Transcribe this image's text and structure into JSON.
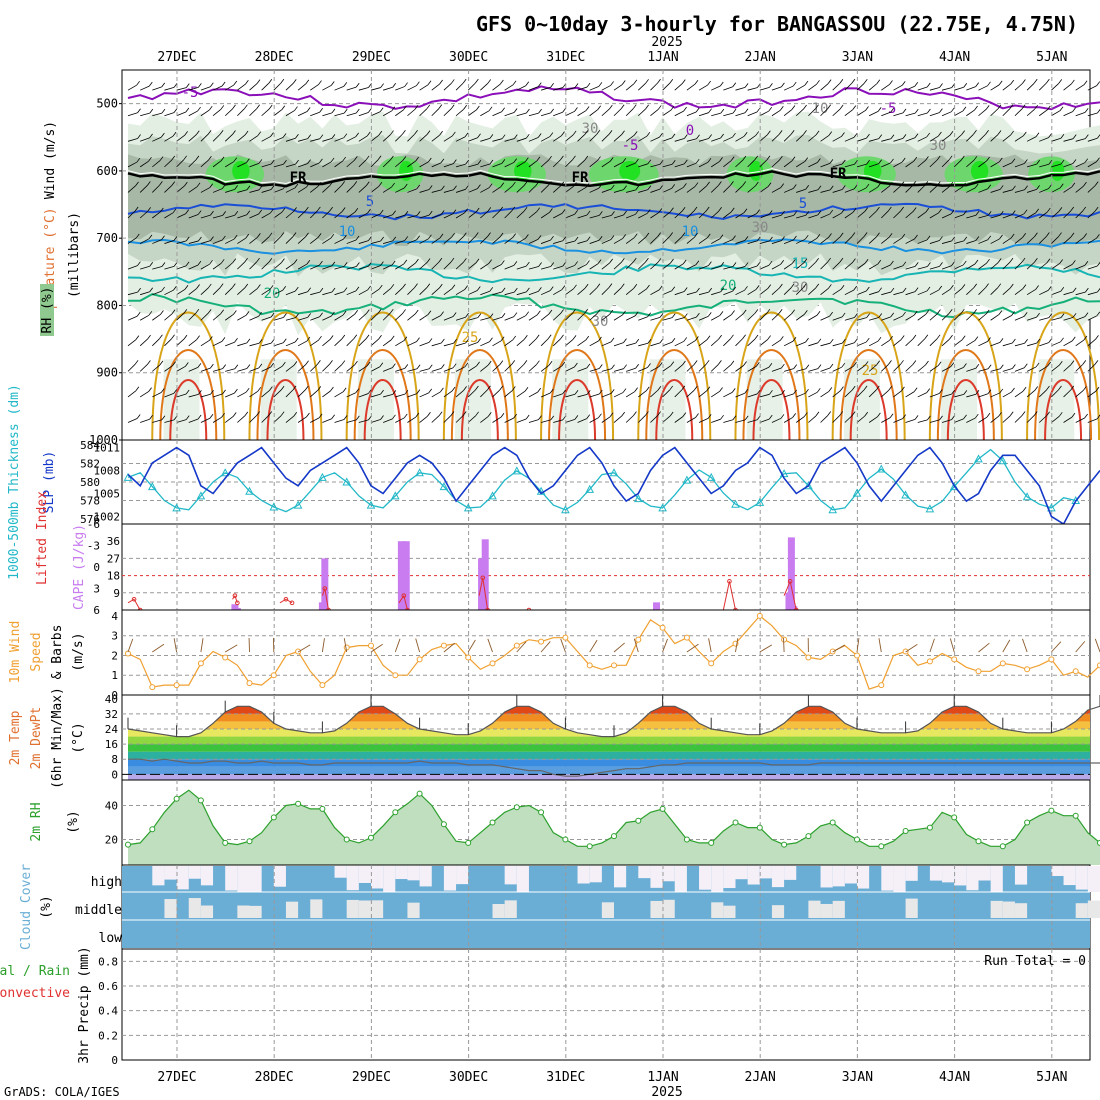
{
  "title": "GFS 0~10day 3-hourly for BANGASSOU (22.75E, 4.75N)",
  "year_label": "2025",
  "date_labels": [
    "27DEC",
    "28DEC",
    "29DEC",
    "30DEC",
    "31DEC",
    "1JAN",
    "2JAN",
    "3JAN",
    "4JAN",
    "5JAN"
  ],
  "footer": "GrADS: COLA/IGES",
  "colors": {
    "rh_fill_light": "#e4efe4",
    "rh_fill_mid": "#c6d6c6",
    "rh_fill_dark": "#a7b8a7",
    "rh_green": "#6dd66d",
    "rh_bright": "#22e022",
    "t_minus5": "#8a0fb8",
    "t_freezing": "#000000",
    "t5": "#1a4ed6",
    "t10": "#1990e0",
    "t15": "#17b4b4",
    "t20": "#15b07a",
    "t25": "#d8a418",
    "t30": "#e0781a",
    "t35": "#dc3a2a",
    "slp": "#1438c8",
    "thickness": "#22b8c8",
    "cape": "#c87cf0",
    "lifted_index": "#e03030",
    "wind10m": "#f0a030",
    "rh2m": "#2ca02c",
    "cloud_blue": "#6aaed6",
    "cloud_white": "#f5f0f8"
  },
  "panels": {
    "upper_air": {
      "ylabel": "(millibars)",
      "side_labels": [
        "Wind (m/s)",
        "Temperature (°C)",
        "RH (%)"
      ],
      "pressure_ticks": [
        "500",
        "600",
        "700",
        "800",
        "900",
        "1000"
      ],
      "contour_labels": [
        "-5",
        "-5",
        "-5",
        "0",
        "FR",
        "FR",
        "FR",
        "5",
        "5",
        "10",
        "10",
        "15",
        "20",
        "20",
        "25",
        "25",
        "10",
        "30",
        "30",
        "30",
        "30",
        "30"
      ]
    },
    "slp_thickness": {
      "left_label": "1000-500mb Thickness (dm)",
      "right_label": "SLP (mb)",
      "thickness_ticks": [
        "584",
        "582",
        "580",
        "578",
        "576"
      ],
      "slp_ticks": [
        "1011",
        "1008",
        "1005",
        "1002"
      ]
    },
    "cape_li": {
      "left_label": "Lifted Index",
      "right_label": "CAPE (J/kg)",
      "li_ticks": [
        "-6",
        "-3",
        "0",
        "3",
        "6"
      ],
      "cape_ticks": [
        "36",
        "27",
        "18",
        "9"
      ]
    },
    "wind10m": {
      "label_a": "10m Wind",
      "label_b": "Speed",
      "label_c": "& Barbs",
      "unit": "(m/s)",
      "ticks": [
        "4",
        "3",
        "2",
        "1",
        "0"
      ]
    },
    "temp2m": {
      "label_a": "2m Temp",
      "label_b": "2m DewPt",
      "label_c": "(6hr Min/Max)",
      "unit": "(°C)",
      "ticks": [
        "40",
        "32",
        "24",
        "16",
        "8",
        "0"
      ]
    },
    "rh2m": {
      "label": "2m RH",
      "unit": "(%)",
      "ticks": [
        "40",
        "20"
      ]
    },
    "cloud": {
      "label": "Cloud Cover",
      "unit": "(%)",
      "levels": [
        "high",
        "middle",
        "low"
      ]
    },
    "precip": {
      "label_a": "Total / Rain",
      "label_b": "Convective",
      "label_c": "3hr Precip (mm)",
      "ticks": [
        "0.8",
        "0.6",
        "0.4",
        "0.2",
        "0"
      ],
      "run_total": "Run Total = 0"
    }
  },
  "chart_data": [
    {
      "type": "line",
      "title": "1000-500mb Thickness (dm) and SLP (mb)",
      "series": [
        {
          "name": "SLP (mb)",
          "values": [
            1007.5,
            1006,
            1009,
            1010,
            1011,
            1010,
            1006,
            1005,
            1007,
            1009,
            1010,
            1011,
            1009,
            1007,
            1006,
            1008,
            1009,
            1010,
            1011,
            1009,
            1006,
            1005,
            1007,
            1009,
            1010,
            1009,
            1007,
            1004,
            1006,
            1008,
            1010,
            1011,
            1010,
            1007,
            1005,
            1006,
            1008,
            1010,
            1011,
            1009,
            1006,
            1004,
            1005,
            1008,
            1010,
            1011,
            1009,
            1007,
            1005,
            1006,
            1008,
            1009,
            1011,
            1010,
            1007,
            1005,
            1006,
            1009,
            1010,
            1011,
            1009,
            1006,
            1004,
            1006,
            1008,
            1010,
            1011,
            1009,
            1006,
            1004,
            1005,
            1008,
            1010,
            1010,
            1008,
            1006,
            1002,
            1001,
            1004,
            1006,
            1008
          ]
        },
        {
          "name": "1000-500mb Thickness (dm)",
          "values": [
            580.5,
            581,
            579.5,
            578,
            577.2,
            577,
            578.5,
            580,
            581,
            580.5,
            579,
            578,
            577.3,
            576.8,
            577.5,
            579,
            580.5,
            581,
            580,
            578.5,
            577.5,
            577.2,
            578.5,
            580,
            581,
            580.8,
            579.5,
            578,
            577.2,
            577.3,
            578.5,
            580.2,
            581.2,
            580.4,
            579,
            577.5,
            577,
            577.8,
            579.2,
            580.8,
            581,
            579.8,
            578.2,
            577.4,
            577.2,
            578.6,
            580.2,
            581.3,
            580.5,
            578.8,
            577.6,
            577,
            577.8,
            579.4,
            580.9,
            581,
            579.6,
            578,
            577,
            577.2,
            578.8,
            580.4,
            581.4,
            580.3,
            578.6,
            577.4,
            577.1,
            577.9,
            579.5,
            581,
            582.5,
            583.5,
            582.3,
            580,
            578.4,
            577.6,
            577.2,
            578.3,
            578
          ]
        }
      ],
      "ylim_slp": [
        1001,
        1012
      ],
      "ylim_thickness": [
        576,
        584
      ]
    },
    {
      "type": "bar",
      "title": "CAPE (J/kg) and Lifted Index",
      "series": [
        {
          "name": "CAPE (J/kg)",
          "points": [
            [
              8.8,
              3
            ],
            [
              9.0,
              1
            ],
            [
              16.0,
              4
            ],
            [
              16.2,
              27
            ],
            [
              22.5,
              36
            ],
            [
              22.9,
              36
            ],
            [
              29.1,
              27
            ],
            [
              29.4,
              37
            ],
            [
              43.5,
              4
            ],
            [
              54.4,
              9
            ],
            [
              54.6,
              38
            ],
            [
              54.8,
              2
            ]
          ]
        },
        {
          "name": "Lifted Index",
          "points": [
            [
              0,
              5
            ],
            [
              0.5,
              4.5
            ],
            [
              1,
              6
            ],
            [
              8.6,
              4.5
            ],
            [
              8.8,
              4
            ],
            [
              9.0,
              5
            ],
            [
              12.5,
              5
            ],
            [
              13,
              4.5
            ],
            [
              13.5,
              5
            ],
            [
              16,
              4
            ],
            [
              16.2,
              3
            ],
            [
              16.5,
              6
            ],
            [
              22.3,
              5
            ],
            [
              22.7,
              4
            ],
            [
              23,
              6
            ],
            [
              28.9,
              4
            ],
            [
              29.2,
              1.5
            ],
            [
              29.6,
              6
            ],
            [
              32.5,
              6
            ],
            [
              33,
              6
            ],
            [
              49,
              6
            ],
            [
              49.5,
              2
            ],
            [
              50,
              6
            ],
            [
              54,
              4
            ],
            [
              54.5,
              2
            ],
            [
              55,
              6
            ]
          ]
        }
      ],
      "ylim_cape": [
        0,
        45
      ],
      "ylim_li": [
        6,
        -6
      ]
    },
    {
      "type": "line",
      "title": "10m Wind Speed (m/s)",
      "series": [
        {
          "name": "Speed",
          "values": [
            2.1,
            1.8,
            0.4,
            0.5,
            0.5,
            0.5,
            1.6,
            2.2,
            1.9,
            1.5,
            0.6,
            0.5,
            1.0,
            2.0,
            2.2,
            1.2,
            0.5,
            1.0,
            2.4,
            2.5,
            2.5,
            1.5,
            1.0,
            1.0,
            1.8,
            2.3,
            2.5,
            2.6,
            1.9,
            1.3,
            1.6,
            2.0,
            2.5,
            2.8,
            2.7,
            2.9,
            2.9,
            2.2,
            1.5,
            1.3,
            1.5,
            1.5,
            2.8,
            3.8,
            3.4,
            2.6,
            2.9,
            2.2,
            1.6,
            2.2,
            2.6,
            3.3,
            4.0,
            3.5,
            2.8,
            2.5,
            1.9,
            1.8,
            2.2,
            2.5,
            2.0,
            0.3,
            0.5,
            2.0,
            2.2,
            1.5,
            1.7,
            2.1,
            1.8,
            1.4,
            1.2,
            1.2,
            1.6,
            1.5,
            1.3,
            1.5,
            1.8,
            1.0,
            1.2,
            0.9,
            1.5
          ]
        }
      ],
      "ylim": [
        0,
        4
      ]
    },
    {
      "type": "area",
      "title": "2m Temp (°C)",
      "series": [
        {
          "name": "2m Temp",
          "values": [
            24,
            23,
            22,
            21,
            20,
            20,
            22,
            27,
            33,
            36,
            36,
            33,
            27,
            24,
            23,
            22,
            22,
            23,
            27,
            33,
            36,
            36,
            32,
            27,
            24,
            23,
            22,
            21,
            21,
            23,
            27,
            33,
            36,
            36,
            33,
            27,
            24,
            22,
            21,
            20,
            20,
            22,
            27,
            33,
            36,
            36,
            33,
            27,
            24,
            23,
            22,
            21,
            21,
            23,
            27,
            33,
            36,
            36,
            33,
            27,
            24,
            23,
            22,
            22,
            22,
            23,
            27,
            33,
            36,
            36,
            33,
            27,
            24,
            23,
            22,
            22,
            22,
            24,
            28,
            34,
            36,
            37,
            34,
            28,
            25,
            24,
            23,
            24
          ]
        },
        {
          "name": "2m DewPt",
          "values": [
            8,
            8,
            7,
            8,
            7,
            6,
            6,
            7,
            7,
            6,
            6,
            7,
            6,
            6,
            6,
            5,
            5,
            6,
            6,
            6,
            6,
            6,
            6,
            6,
            7,
            6,
            6,
            6,
            5,
            5,
            5,
            4,
            3,
            2,
            2,
            0,
            -1,
            -1,
            0,
            1,
            2,
            3,
            3,
            4,
            5,
            5,
            6,
            6,
            6,
            6,
            6,
            6,
            6,
            5,
            5,
            5,
            5,
            6,
            6,
            6,
            6,
            6,
            6,
            6,
            6,
            6,
            6,
            6,
            6,
            6,
            6,
            6,
            6,
            6,
            6,
            6,
            6,
            6,
            6,
            6,
            6,
            6,
            6,
            6,
            6,
            6,
            6,
            6
          ]
        }
      ],
      "ylim": [
        -3,
        42
      ]
    },
    {
      "type": "area",
      "title": "2m RH (%)",
      "series": [
        {
          "name": "2m RH",
          "values": [
            17,
            18,
            26,
            36,
            44,
            49,
            43,
            28,
            18,
            17,
            19,
            24,
            33,
            40,
            41,
            38,
            38,
            27,
            20,
            18,
            21,
            28,
            36,
            41,
            47,
            40,
            29,
            19,
            18,
            24,
            30,
            36,
            39,
            40,
            36,
            24,
            20,
            16,
            16,
            18,
            22,
            30,
            31,
            36,
            38,
            29,
            20,
            18,
            18,
            25,
            30,
            27,
            27,
            20,
            17,
            18,
            22,
            28,
            30,
            24,
            20,
            16,
            16,
            19,
            25,
            26,
            27,
            36,
            33,
            23,
            19,
            16,
            16,
            20,
            30,
            34,
            37,
            34,
            34,
            24,
            18,
            18,
            21,
            25,
            33,
            37,
            37,
            33
          ]
        }
      ],
      "ylim": [
        5,
        55
      ]
    },
    {
      "type": "heatmap",
      "title": "Cloud Cover (%)",
      "categories": [
        "high",
        "middle",
        "low"
      ]
    },
    {
      "type": "bar",
      "title": "3hr Precip (mm)",
      "series": [
        {
          "name": "Total / Rain",
          "values": []
        },
        {
          "name": "Convective",
          "values": []
        }
      ],
      "ylim": [
        0,
        0.9
      ]
    }
  ]
}
